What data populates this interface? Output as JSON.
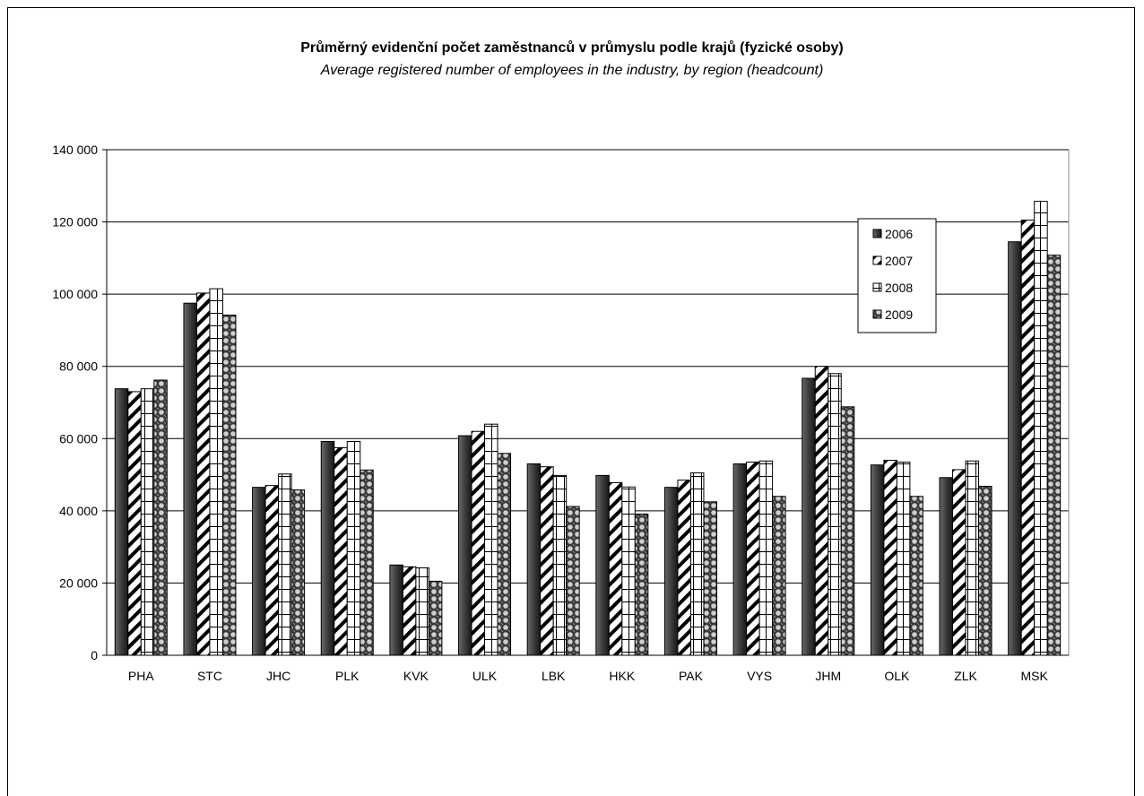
{
  "chart_data": {
    "type": "bar",
    "title": "Průměrný evidenční počet zaměstnanců v průmyslu podle krajů (fyzické osoby)",
    "subtitle": "Average registered number of employees in the industry, by region (headcount)",
    "categories": [
      "PHA",
      "STC",
      "JHC",
      "PLK",
      "KVK",
      "ULK",
      "LBK",
      "HKK",
      "PAK",
      "VYS",
      "JHM",
      "OLK",
      "ZLK",
      "MSK"
    ],
    "series": [
      {
        "name": "2006",
        "pattern": "gradient-dark",
        "values": [
          73800,
          97500,
          46500,
          59200,
          25000,
          60800,
          53000,
          49800,
          46500,
          53000,
          76700,
          52700,
          49200,
          114500
        ]
      },
      {
        "name": "2007",
        "pattern": "diagonal",
        "values": [
          73000,
          100300,
          47000,
          57500,
          24500,
          62000,
          52200,
          47800,
          48500,
          53500,
          80000,
          54000,
          51400,
          120500
        ]
      },
      {
        "name": "2008",
        "pattern": "grid",
        "values": [
          73800,
          101500,
          50200,
          59200,
          24200,
          64000,
          49800,
          46600,
          50500,
          53800,
          78000,
          53500,
          53800,
          125700
        ]
      },
      {
        "name": "2009",
        "pattern": "dots",
        "values": [
          76200,
          94200,
          45800,
          51300,
          20500,
          55900,
          41200,
          39100,
          42500,
          44000,
          68800,
          44000,
          46800,
          110800
        ]
      }
    ],
    "yticks": [
      "0",
      "20 000",
      "40 000",
      "60 000",
      "80 000",
      "100 000",
      "120 000",
      "140 000"
    ],
    "ylim": [
      0,
      140000
    ],
    "grid": true,
    "legend_position": "top-right"
  }
}
